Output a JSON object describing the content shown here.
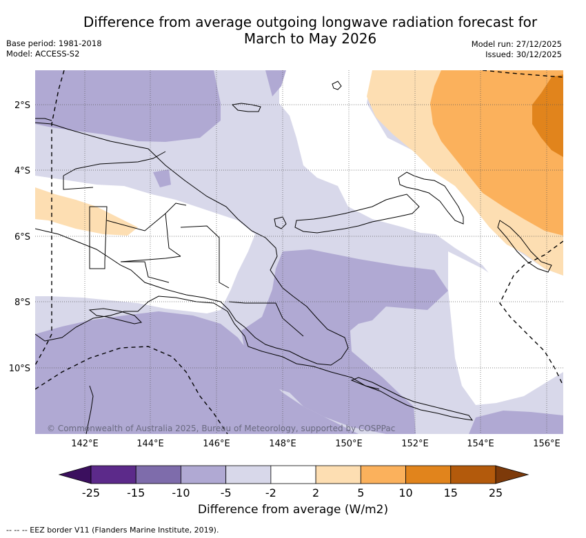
{
  "title_line1": "Difference from average outgoing longwave radiation forecast for",
  "title_line2": "March to May 2026",
  "base_period": "Base period: 1981-2018",
  "model": "Model: ACCESS-S2",
  "model_run": "Model run: 27/12/2025",
  "issued": "Issued: 30/12/2025",
  "copyright": "© Commonwealth of Australia 2025, Bureau of Meteorology, supported by COSPPac",
  "lon_ticks": [
    "142°E",
    "144°E",
    "146°E",
    "148°E",
    "150°E",
    "152°E",
    "154°E",
    "156°E"
  ],
  "lat_ticks": [
    "2°S",
    "4°S",
    "6°S",
    "8°S",
    "10°S"
  ],
  "legend": {
    "title": "Difference from average (W/m2)",
    "labels": [
      "-25",
      "-15",
      "-10",
      "-5",
      "-2",
      "2",
      "5",
      "10",
      "15",
      "25"
    ],
    "colors": [
      "#3b0f5e",
      "#5c2a8a",
      "#7e6cab",
      "#b0a9d3",
      "#d8d8ea",
      "#ffffff",
      "#fddeb2",
      "#fbb15c",
      "#e1841c",
      "#b35a0c",
      "#7d3a0a"
    ]
  },
  "footnote": "-- -- -- EEZ border V11 (Flanders Marine Institute, 2019).",
  "colors": {
    "light_purple": "#d8d8ea",
    "mid_purple": "#b0a9d3",
    "light_orange": "#fddeb2",
    "mid_orange": "#fbb15c",
    "dark_orange": "#e1841c"
  }
}
